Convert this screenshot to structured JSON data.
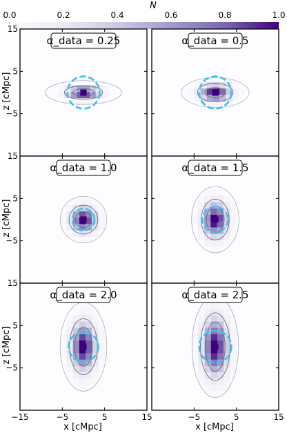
{
  "chart_data": {
    "type": "heatmap",
    "colorbar": {
      "label": "N",
      "range": [
        0,
        1
      ],
      "ticks": [
        "0.0",
        "0.2",
        "0.4",
        "0.6",
        "0.8",
        "1.0"
      ],
      "colormap": "Purples"
    },
    "xlabel": "x [cMpc]",
    "ylabel": "z [cMpc]",
    "xlim": [
      -15,
      15
    ],
    "ylim": [
      -15,
      15
    ],
    "x_ticks": [
      "−15",
      "−5",
      "5",
      "15"
    ],
    "y_ticks": [
      "15",
      "5",
      "−5"
    ],
    "colors": {
      "circle": "#3cc0f0",
      "contour": "#6e6e7a",
      "frame": "#000000"
    },
    "panels": [
      {
        "label": "α_data = 0.25",
        "alpha": 0.25,
        "core": [
          2.5,
          0.9
        ],
        "mid": [
          4.5,
          1.6
        ],
        "outer": [
          9.0,
          2.8
        ],
        "circle_radius": 3.8
      },
      {
        "label": "α_data = 0.5",
        "alpha": 0.5,
        "core": [
          2.4,
          1.2
        ],
        "mid": [
          4.2,
          2.2
        ],
        "outer": [
          8.0,
          3.5
        ],
        "circle_radius": 3.8
      },
      {
        "label": "α_data = 1.0",
        "alpha": 1.0,
        "core": [
          1.9,
          1.9
        ],
        "mid": [
          3.4,
          3.4
        ],
        "outer": [
          5.5,
          5.5
        ],
        "circle_radius": 2.6
      },
      {
        "label": "α_data = 1.5",
        "alpha": 1.5,
        "core": [
          2.1,
          3.1
        ],
        "mid": [
          3.3,
          4.8
        ],
        "outer": [
          5.6,
          7.8
        ],
        "circle_radius": 3.0
      },
      {
        "label": "α_data = 2.0",
        "alpha": 2.0,
        "core": [
          2.1,
          4.6
        ],
        "mid": [
          3.3,
          6.6
        ],
        "outer": [
          5.5,
          10.5
        ],
        "circle_radius": 3.5
      },
      {
        "label": "α_data = 2.5",
        "alpha": 2.5,
        "core": [
          2.3,
          5.8
        ],
        "mid": [
          3.5,
          8.0
        ],
        "outer": [
          5.5,
          12.0
        ],
        "circle_radius": 3.8
      }
    ]
  }
}
